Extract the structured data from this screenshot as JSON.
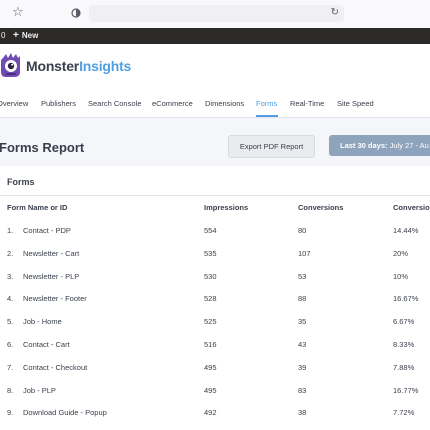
{
  "browser": {
    "star_icon": "star-icon",
    "shield_icon": "shield-icon",
    "reload_icon": "reload-icon"
  },
  "adminbar": {
    "count": "0",
    "new_label": "New"
  },
  "logo": {
    "name_main": "Monster",
    "name_accent": "Insights",
    "accent_color": "#509fe2"
  },
  "tabs": [
    {
      "label": "Overview"
    },
    {
      "label": "Publishers"
    },
    {
      "label": "Search Console"
    },
    {
      "label": "eCommerce"
    },
    {
      "label": "Dimensions"
    },
    {
      "label": "Forms",
      "active": true
    },
    {
      "label": "Real-Time"
    },
    {
      "label": "Site Speed"
    }
  ],
  "report": {
    "title": "Forms Report",
    "export_label": "Export PDF Report",
    "date_prefix": "Last 30 days:",
    "date_range": "July 27 - Au"
  },
  "panel": {
    "title": "Forms",
    "columns": [
      "Form Name or ID",
      "Impressions",
      "Conversions",
      "Conversio"
    ],
    "rows": [
      {
        "num": "1.",
        "name": "Contact - PDP",
        "impressions": "554",
        "conversions": "80",
        "rate": "14.44%"
      },
      {
        "num": "2.",
        "name": "Newsletter - Cart",
        "impressions": "535",
        "conversions": "107",
        "rate": "20%"
      },
      {
        "num": "3.",
        "name": "Newsletter - PLP",
        "impressions": "530",
        "conversions": "53",
        "rate": "10%"
      },
      {
        "num": "4.",
        "name": "Newsletter - Footer",
        "impressions": "528",
        "conversions": "88",
        "rate": "16.67%"
      },
      {
        "num": "5.",
        "name": "Job - Home",
        "impressions": "525",
        "conversions": "35",
        "rate": "6.67%"
      },
      {
        "num": "6.",
        "name": "Contact - Cart",
        "impressions": "516",
        "conversions": "43",
        "rate": "8.33%"
      },
      {
        "num": "7.",
        "name": "Contact - Checkout",
        "impressions": "495",
        "conversions": "39",
        "rate": "7.88%"
      },
      {
        "num": "8.",
        "name": "Job - PLP",
        "impressions": "495",
        "conversions": "83",
        "rate": "16.77%"
      },
      {
        "num": "9.",
        "name": "Download Guide - Popup",
        "impressions": "492",
        "conversions": "38",
        "rate": "7.72%"
      }
    ]
  }
}
